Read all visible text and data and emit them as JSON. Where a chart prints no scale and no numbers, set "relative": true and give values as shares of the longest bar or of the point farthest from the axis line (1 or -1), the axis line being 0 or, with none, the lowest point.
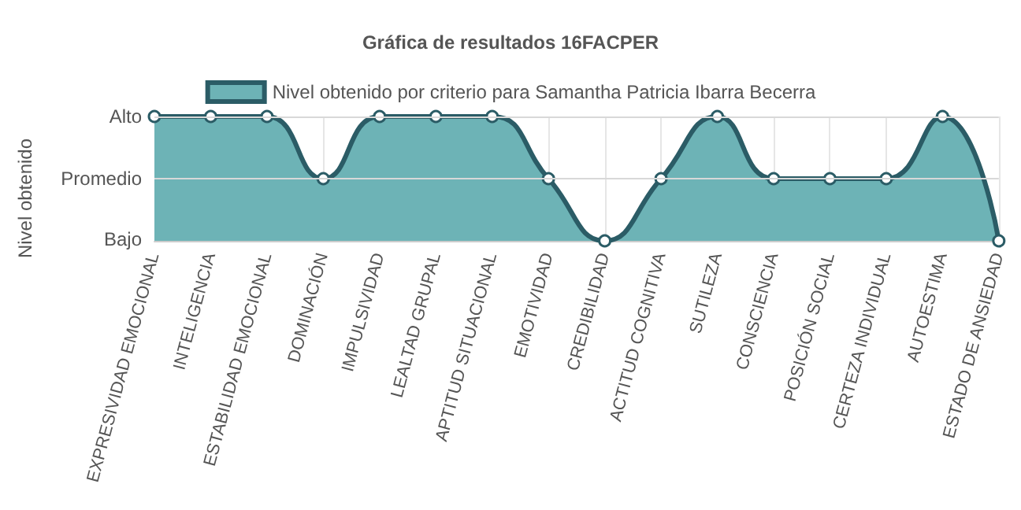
{
  "chart_data": {
    "type": "area",
    "title": "Gráfica de resultados 16FACPER",
    "ylabel": "Nivel obtenido",
    "relative": true,
    "categories": [
      "EXPRESIVIDAD EMOCIONAL",
      "INTELIGENCIA",
      "ESTABILIDAD EMOCIONAL",
      "DOMINACIÓN",
      "IMPULSIVIDAD",
      "LEALTAD GRUPAL",
      "APTITUD SITUACIONAL",
      "EMOTIVIDAD",
      "CREDIBILIDAD",
      "ACTITUD COGNITIVA",
      "SUTILEZA",
      "CONSCIENCIA",
      "POSICIÓN SOCIAL",
      "CERTEZA INDIVIDUAL",
      "AUTOESTIMA",
      "ESTADO DE ANSIEDAD"
    ],
    "series": [
      {
        "name": "Nivel obtenido por criterio para Samantha Patricia Ibarra Becerra",
        "color": "#6db3b6",
        "values": [
          1,
          1,
          1,
          0.5,
          1,
          1,
          1,
          0.5,
          0,
          0.5,
          1,
          0.5,
          0.5,
          0.5,
          1,
          0
        ]
      }
    ],
    "annotations": [
      "Bajo"
    ],
    "ref_lines": [
      {
        "axis": "y",
        "value": 0.5,
        "label": "Promedio",
        "color": "#d8d8d8"
      },
      {
        "axis": "y",
        "value": 1,
        "label": "Alto",
        "color": "#d8d8d8"
      }
    ],
    "grid": "x",
    "legend": "top",
    "marker": "circle",
    "line_style": "solid"
  }
}
